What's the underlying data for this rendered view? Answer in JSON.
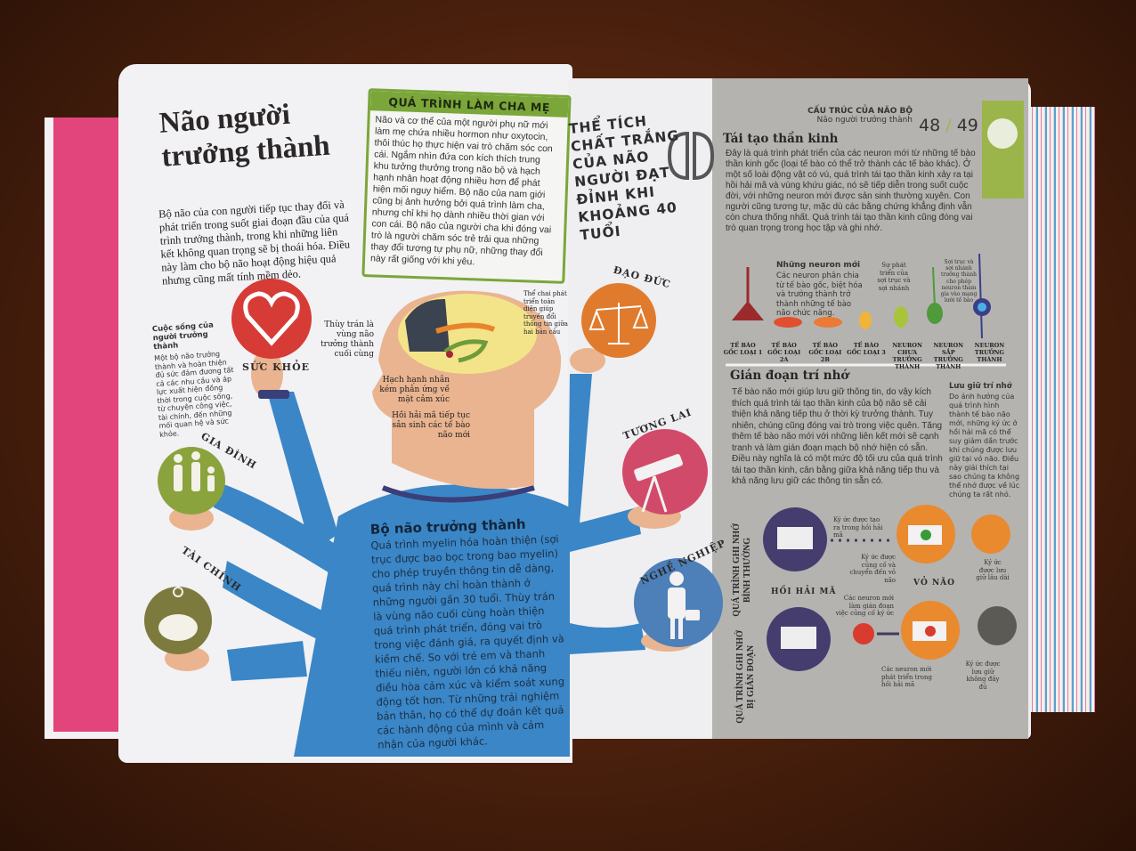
{
  "left_page": {
    "title": "Não người trưởng thành",
    "intro": "Bộ não của con người tiếp tục thay đổi và phát triển trong suốt giai đoạn đầu của quá trình trưởng thành, trong khi những liên kết không quan trọng sẽ bị thoái hóa. Điều này làm cho bộ não hoạt động hiệu quả nhưng cũng mất tính mềm dẻo.",
    "parenting_box": {
      "heading": "QUÁ TRÌNH LÀM CHA MẸ",
      "text": "Não và cơ thể của một người phụ nữ mới làm mẹ chứa nhiều hormon như oxytocin, thôi thúc họ thực hiện vai trò chăm sóc con cái. Ngắm nhìn đứa con kích thích trung khu tưởng thưởng trong não bộ và hạch hạnh nhân hoạt động nhiều hơn để phát hiện mối nguy hiểm. Bộ não của nam giới cũng bị ảnh hưởng bởi quá trình làm cha, nhưng chỉ khi họ dành nhiều thời gian với con cái. Bộ não của người cha khi đóng vai trò là người chăm sóc trẻ trải qua những thay đổi tương tự phụ nữ, những thay đổi này rất giống với khi yêu."
    },
    "sidebar": {
      "heading": "Cuộc sống của người trưởng thành",
      "text": "Một bộ não trưởng thành và hoàn thiện đủ sức đảm đương tất cả các nhu cầu và áp lực xuất hiện đồng thời trong cuộc sống, từ chuyện công việc, tài chính, đến những mối quan hệ và sức khỏe."
    },
    "circles": [
      {
        "label": "SỨC KHỎE",
        "icon": "heart-pulse-icon",
        "color": "#d63b36"
      },
      {
        "label": "GIA ĐÌNH",
        "icon": "family-icon",
        "color": "#8aa33c"
      },
      {
        "label": "TÀI CHÍNH",
        "icon": "piggy-bank-icon",
        "color": "#7d7a3e"
      }
    ],
    "brain_labels": {
      "frontal": "Thùy trán là vùng não trưởng thành cuối cùng",
      "corpus": "Thể chai phát triển toàn diện giúp truyền đổi thông tin giữa hai bán cầu",
      "amygdala": "Hạch hạnh nhân kém phản ứng về mặt cảm xúc",
      "hippocampus": "Hồi hải mã tiếp tục sản sinh các tế bào não mới"
    },
    "adult_brain": {
      "heading": "Bộ não trưởng thành",
      "text": "Quá trình myelin hóa hoàn thiện (sợi trục được bao bọc trong bao myelin) cho phép truyền thông tin dễ dàng, quá trình này chỉ hoàn thành ở những người gần 30 tuổi. Thùy trán là vùng não cuối cùng hoàn thiện quá trình phát triển, đóng vai trò trong việc đánh giá, ra quyết định và kiềm chế. So với trẻ em và thanh thiếu niên, người lớn có khả năng điều hòa cảm xúc và kiểm soát xung động tốt hơn. Từ những trải nghiệm bản thân, họ có thể dự đoán kết quả các hành động của mình và cảm nhận của người khác."
    }
  },
  "right_page": {
    "white_matter": "THỂ TÍCH CHẤT TRẮNG CỦA NÃO NGƯỜI ĐẠT ĐỈNH KHI KHOẢNG 40 TUỔI",
    "circles": [
      {
        "label": "ĐẠO ĐỨC",
        "icon": "scales-icon",
        "color": "#e07b2e"
      },
      {
        "label": "TƯƠNG LAI",
        "icon": "telescope-icon",
        "color": "#d24a6a"
      },
      {
        "label": "NGHỀ NGHIỆP",
        "icon": "businesswoman-icon",
        "color": "#4d7fb8"
      }
    ],
    "section": "CẤU TRÚC CỦA NÃO BỘ",
    "subsection": "Não người trưởng thành",
    "page_left": "48",
    "page_sep": "/",
    "page_right": "49",
    "neurogenesis": {
      "heading": "Tái tạo thần kinh",
      "text": "Đây là quá trình phát triển của các neuron mới từ những tế bào thần kinh gốc (loại tế bào có thể trở thành các tế bào khác). Ở một số loài động vật có vú, quá trình tái tạo thần kinh xảy ra tại hồi hải mã và vùng khứu giác, nó sẽ tiếp diễn trong suốt cuộc đời, với những neuron mới được sản sinh thường xuyên. Con người cũng tương tự, mặc dù các bằng chứng khẳng định vẫn còn chưa thống nhất. Quá trình tái tạo thần kinh cũng đóng vai trò quan trọng trong học tập và ghi nhớ.",
      "new_neurons_heading": "Những neuron mới",
      "new_neurons_text": "Các neuron phân chia từ tế bào gốc, biệt hóa và trưởng thành trở thành những tế bào não chức năng.",
      "note_growth": "Sự phát triển của sợi trục và sợi nhánh",
      "note_mature": "Sợi trục và sợi nhánh trưởng thành cho phép neuron tham gia vào mạng lưới tế bào",
      "stages": [
        "TẾ BÀO GỐC LOẠI 1",
        "TẾ BÀO GỐC LOẠI 2A",
        "TẾ BÀO GỐC LOẠI 2B",
        "TẾ BÀO GỐC LOẠI 3",
        "NEURON CHƯA TRƯỞNG THÀNH",
        "NEURON SẮP TRƯỞNG THÀNH",
        "NEURON TRƯỞNG THÀNH"
      ],
      "stage_colors": [
        "#9b2b2b",
        "#e0502c",
        "#ea7a35",
        "#f0b43a",
        "#a8c43a",
        "#4f9a3a",
        "#3a3f8a"
      ]
    },
    "memory": {
      "heading": "Gián đoạn trí nhớ",
      "text": "Tế bào não mới giúp lưu giữ thông tin, do vậy kích thích quá trình tái tạo thần kinh của bộ não sẽ cải thiện khả năng tiếp thu ở thời kỳ trưởng thành. Tuy nhiên, chúng cũng đóng vai trò trong việc quên. Tăng thêm tế bào não mới với những liên kết mới sẽ cạnh tranh và làm gián đoạn mạch bộ nhớ hiện có sẵn. Điều này nghĩa là có một mức độ tối ưu của quá trình tái tạo thần kinh, cân bằng giữa khả năng tiếp thu và khả năng lưu giữ các thông tin sẵn có.",
      "side_heading": "Lưu giữ trí nhớ",
      "side_text": "Do ảnh hưởng của quá trình hình thành tế bào não mới, những ký ức ở hồi hải mã có thể suy giảm dần trước khi chúng được lưu giữ tại vỏ não. Điều này giải thích tại sao chúng ta không thể nhớ được về lúc chúng ta rất nhỏ.",
      "row_normal": "QUÁ TRÌNH GHI NHỚ BÌNH THƯỜNG",
      "row_disrupted": "QUÁ TRÌNH GHI NHỚ BỊ GIÁN ĐOẠN",
      "hippocampus": "HỒI HẢI MÃ",
      "cortex": "VỎ NÃO",
      "n1": "Ký ức được tạo ra trong hồi hải mã",
      "n2": "Ký ức được củng cố và chuyển đến vỏ não",
      "n3": "Ký ức được lưu giữ lâu dài",
      "d1": "Các neuron mới làm gián đoạn việc củng cố ký ức",
      "d2": "Các neuron mới phát triển trong hồi hải mã",
      "d3": "Ký ức được lưu giữ không đầy đủ"
    }
  }
}
